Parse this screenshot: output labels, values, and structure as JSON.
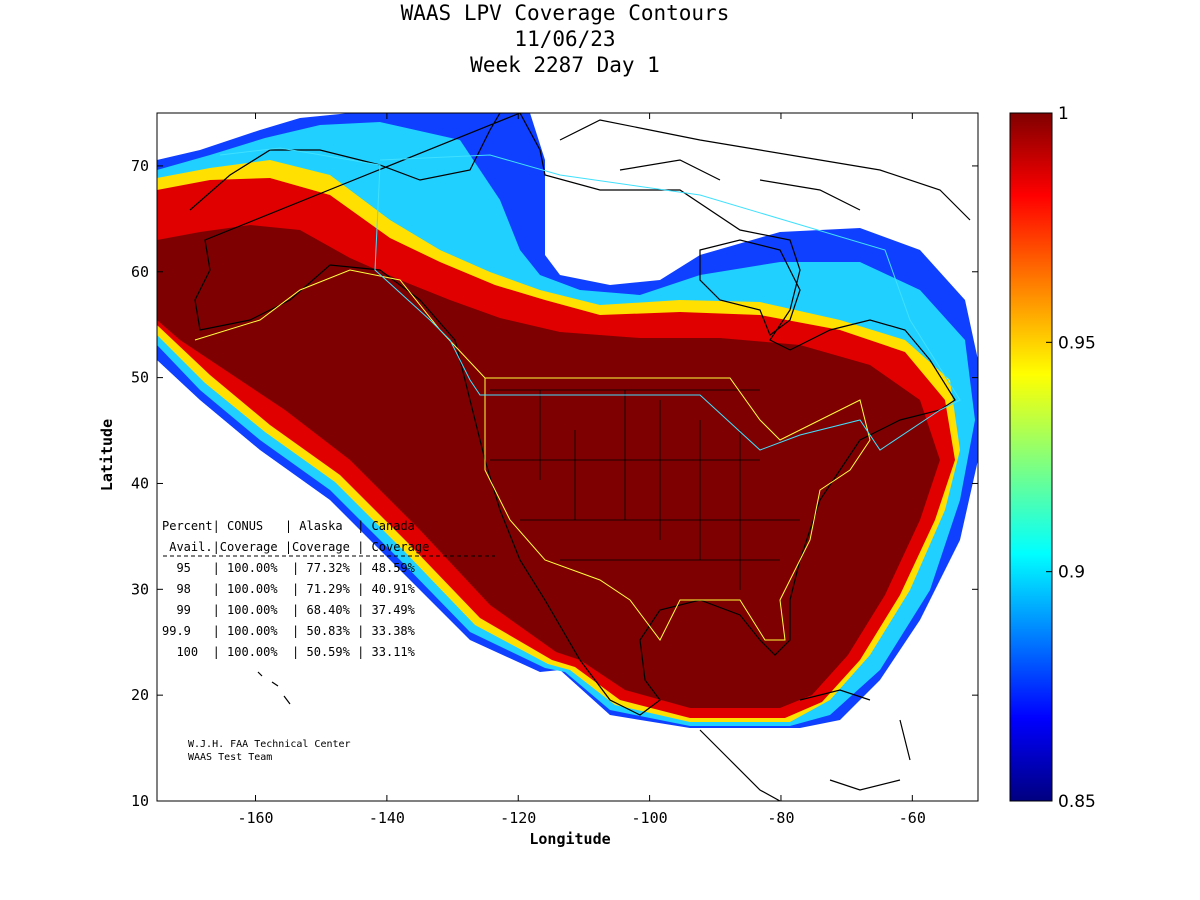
{
  "title": {
    "line1": "WAAS LPV Coverage Contours",
    "line2": "11/06/23",
    "line3": "Week 2287 Day 1"
  },
  "axes": {
    "xlabel": "Longitude",
    "ylabel": "Latitude",
    "xlim": [
      -175,
      -50
    ],
    "ylim": [
      10,
      75
    ],
    "xticks": [
      "-160",
      "-140",
      "-120",
      "-100",
      "-80",
      "-60"
    ],
    "xtick_values": [
      -160,
      -140,
      -120,
      -100,
      -80,
      -60
    ],
    "yticks": [
      "10",
      "20",
      "30",
      "40",
      "50",
      "60",
      "70"
    ],
    "ytick_values": [
      10,
      20,
      30,
      40,
      50,
      60,
      70
    ]
  },
  "colorbar": {
    "min": 0.85,
    "max": 1,
    "labels": [
      "1",
      "0.95",
      "0.9",
      "0.85"
    ],
    "label_values": [
      1,
      0.95,
      0.9,
      0.85
    ],
    "colormap": "jet"
  },
  "table": {
    "header1": "Percent| CONUS   | Alaska  | Canada",
    "header2": " Avail.|Coverage |Coverage | Coverage",
    "rows": [
      {
        "percent": "95",
        "conus": "100.00%",
        "alaska": "77.32%",
        "canada": "48.59%"
      },
      {
        "percent": "98",
        "conus": "100.00%",
        "alaska": "71.29%",
        "canada": "40.91%"
      },
      {
        "percent": "99",
        "conus": "100.00%",
        "alaska": "68.40%",
        "canada": "37.49%"
      },
      {
        "percent": "99.9",
        "conus": "100.00%",
        "alaska": "50.83%",
        "canada": "33.38%"
      },
      {
        "percent": "100",
        "conus": "100.00%",
        "alaska": "50.59%",
        "canada": "33.11%"
      }
    ]
  },
  "credits": {
    "line1": "W.J.H. FAA Technical Center",
    "line2": "WAAS Test Team"
  },
  "colors": {
    "deep_red": "#7f0000",
    "red": "#e00000",
    "boundary_yellow": "#ffff40",
    "boundary_cyan": "#40e0ff",
    "coastline": "#000000"
  }
}
